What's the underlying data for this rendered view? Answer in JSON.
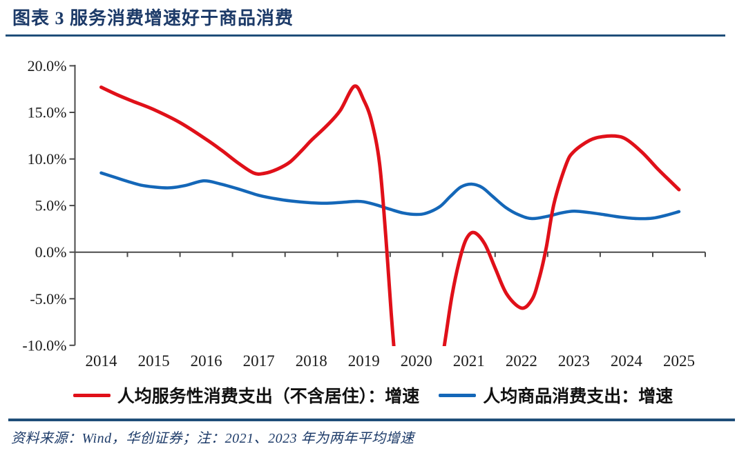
{
  "header": {
    "title": "图表 3  服务消费增速好于商品消费"
  },
  "legend": {
    "items": [
      {
        "label": "人均服务性消费支出（不含居住）：增速",
        "color": "#e01019"
      },
      {
        "label": "人均商品消费支出：增速",
        "color": "#1467b8"
      }
    ]
  },
  "footer": {
    "source_note": "资料来源：Wind，华创证券；注：2021、2023 年为两年平均增速"
  },
  "colors": {
    "title_navy": "#1c3a68",
    "rule_navy": "#1f4e79",
    "axis_gray": "#4a4a4a",
    "series_red": "#e01019",
    "series_blue": "#1467b8"
  },
  "chart_data": {
    "type": "line",
    "title": "服务消费增速好于商品消费",
    "xlabel": "",
    "ylabel": "",
    "x_tick_labels": [
      "2014",
      "2015",
      "2016",
      "2017",
      "2018",
      "2019",
      "2020",
      "2021",
      "2022",
      "2023",
      "2024",
      "2025"
    ],
    "y_tick_values": [
      20,
      15,
      10,
      5,
      0,
      -5,
      -10
    ],
    "y_tick_labels": [
      "20.0%",
      "15.0%",
      "10.0%",
      "5.0%",
      "0.0%",
      "-5.0%",
      "-10.0%"
    ],
    "ylim": [
      -10,
      20
    ],
    "grid": false,
    "legend_position": "bottom",
    "series": [
      {
        "name": "人均服务性消费支出（不含居住）：增速",
        "color": "#e01019",
        "clipped_below_ymin": true,
        "values_at_year_ticks": [
          17.7,
          15.3,
          12.1,
          8.5,
          12.0,
          16.3,
          null,
          2.0,
          -6.0,
          10.8,
          12.1,
          6.7
        ],
        "segments": [
          [
            [
              2014.0,
              17.7
            ],
            [
              2014.3,
              16.9
            ],
            [
              2014.6,
              16.2
            ],
            [
              2015.0,
              15.3
            ],
            [
              2015.5,
              13.9
            ],
            [
              2016.0,
              12.1
            ],
            [
              2016.3,
              10.9
            ],
            [
              2016.6,
              9.6
            ],
            [
              2016.9,
              8.5
            ],
            [
              2017.1,
              8.45
            ],
            [
              2017.35,
              8.9
            ],
            [
              2017.6,
              9.7
            ],
            [
              2017.85,
              11.1
            ],
            [
              2018.0,
              12.0
            ],
            [
              2018.3,
              13.6
            ],
            [
              2018.55,
              15.2
            ],
            [
              2018.82,
              17.8
            ],
            [
              2019.0,
              16.3
            ],
            [
              2019.15,
              14.0
            ],
            [
              2019.3,
              9.5
            ],
            [
              2019.42,
              1.5
            ],
            [
              2019.52,
              -6.5
            ],
            [
              2019.62,
              -13.5
            ]
          ],
          [
            [
              2020.44,
              -13.5
            ],
            [
              2020.56,
              -9.0
            ],
            [
              2020.68,
              -4.6
            ],
            [
              2020.82,
              -0.9
            ],
            [
              2020.95,
              1.4
            ],
            [
              2021.1,
              2.1
            ],
            [
              2021.3,
              0.9
            ],
            [
              2021.5,
              -1.7
            ],
            [
              2021.72,
              -4.5
            ],
            [
              2022.0,
              -6.0
            ],
            [
              2022.2,
              -5.1
            ],
            [
              2022.33,
              -3.0
            ],
            [
              2022.47,
              0.4
            ],
            [
              2022.62,
              5.2
            ],
            [
              2022.85,
              9.4
            ],
            [
              2023.0,
              10.8
            ],
            [
              2023.3,
              12.0
            ],
            [
              2023.55,
              12.4
            ],
            [
              2023.8,
              12.45
            ],
            [
              2024.0,
              12.1
            ],
            [
              2024.3,
              10.7
            ],
            [
              2024.6,
              8.9
            ],
            [
              2024.8,
              7.8
            ],
            [
              2025.0,
              6.7
            ]
          ]
        ]
      },
      {
        "name": "人均商品消费支出：增速",
        "color": "#1467b8",
        "clipped_below_ymin": false,
        "values_at_year_ticks": [
          8.5,
          7.0,
          7.6,
          6.1,
          5.3,
          5.4,
          4.05,
          7.3,
          3.9,
          4.4,
          3.7,
          4.35
        ],
        "segments": [
          [
            [
              2014.0,
              8.5
            ],
            [
              2014.25,
              8.05
            ],
            [
              2014.5,
              7.6
            ],
            [
              2014.75,
              7.2
            ],
            [
              2015.0,
              7.0
            ],
            [
              2015.3,
              6.9
            ],
            [
              2015.6,
              7.15
            ],
            [
              2015.95,
              7.65
            ],
            [
              2016.25,
              7.35
            ],
            [
              2016.6,
              6.8
            ],
            [
              2017.0,
              6.1
            ],
            [
              2017.3,
              5.75
            ],
            [
              2017.6,
              5.5
            ],
            [
              2018.0,
              5.3
            ],
            [
              2018.3,
              5.25
            ],
            [
              2018.6,
              5.35
            ],
            [
              2018.85,
              5.45
            ],
            [
              2019.0,
              5.4
            ],
            [
              2019.25,
              5.05
            ],
            [
              2019.5,
              4.6
            ],
            [
              2019.75,
              4.2
            ],
            [
              2020.0,
              4.05
            ],
            [
              2020.2,
              4.2
            ],
            [
              2020.45,
              4.9
            ],
            [
              2020.65,
              6.0
            ],
            [
              2020.85,
              7.0
            ],
            [
              2021.05,
              7.3
            ],
            [
              2021.25,
              6.95
            ],
            [
              2021.45,
              6.0
            ],
            [
              2021.7,
              4.8
            ],
            [
              2021.95,
              4.0
            ],
            [
              2022.2,
              3.6
            ],
            [
              2022.5,
              3.85
            ],
            [
              2022.75,
              4.2
            ],
            [
              2023.0,
              4.4
            ],
            [
              2023.3,
              4.25
            ],
            [
              2023.6,
              4.0
            ],
            [
              2023.9,
              3.75
            ],
            [
              2024.2,
              3.6
            ],
            [
              2024.5,
              3.65
            ],
            [
              2024.75,
              3.95
            ],
            [
              2025.0,
              4.35
            ]
          ]
        ]
      }
    ]
  }
}
